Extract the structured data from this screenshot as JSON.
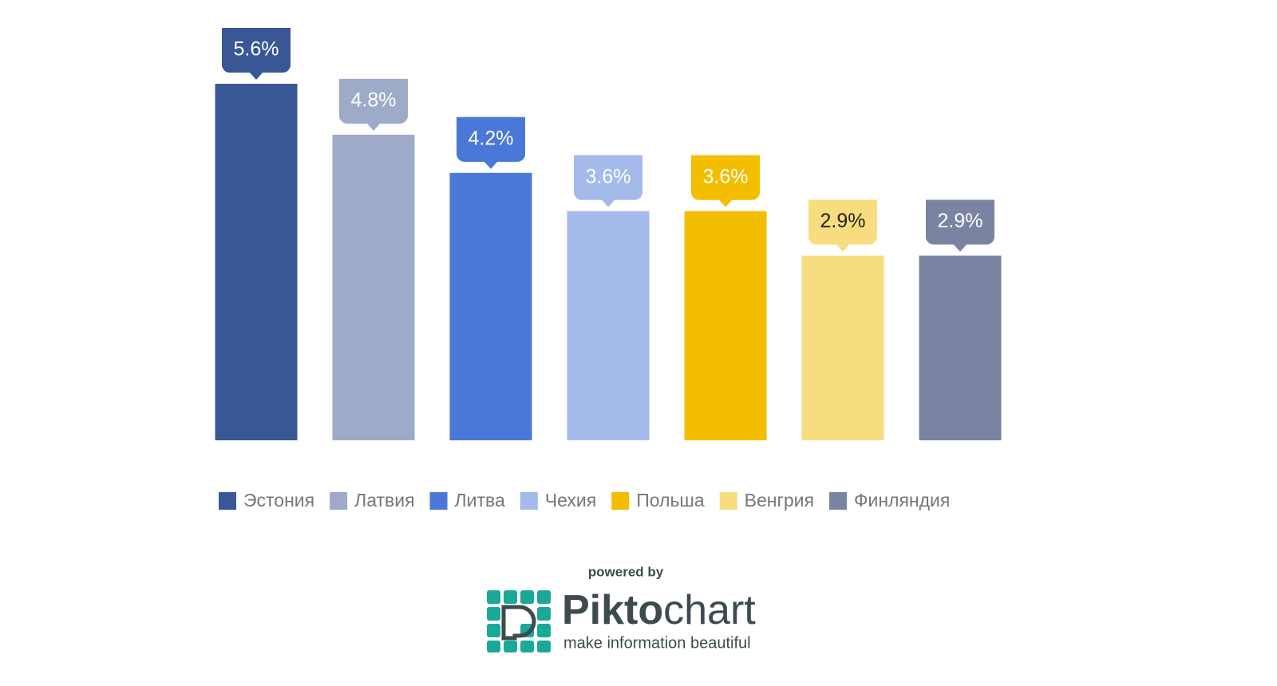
{
  "chart_data": {
    "type": "bar",
    "series": [
      {
        "name": "Эстония",
        "color": "#3a5795",
        "values": [
          5.6
        ],
        "value_labels": [
          "5.6%"
        ]
      },
      {
        "name": "Латвия",
        "color": "#9dabc9",
        "values": [
          4.8
        ],
        "value_labels": [
          "4.8%"
        ]
      },
      {
        "name": "Литва",
        "color": "#4a78d8",
        "values": [
          4.2
        ],
        "value_labels": [
          "4.2%"
        ]
      },
      {
        "name": "Чехия",
        "color": "#a3baea",
        "values": [
          3.6
        ],
        "value_labels": [
          "3.6%"
        ]
      },
      {
        "name": "Польша",
        "color": "#f4be00",
        "values": [
          3.6
        ],
        "value_labels": [
          "3.6%"
        ]
      },
      {
        "name": "Венгрия",
        "color": "#f7dd7f",
        "values": [
          2.9
        ],
        "value_labels": [
          "2.9%"
        ]
      },
      {
        "name": "Финляндия",
        "color": "#7a83a1",
        "values": [
          2.9
        ],
        "value_labels": [
          "2.9%"
        ]
      }
    ],
    "legend": "bottom"
  },
  "footer": {
    "powered_by": "powered by",
    "brand_bold": "Pikto",
    "brand_light": "chart",
    "tagline": "make information beautiful"
  }
}
